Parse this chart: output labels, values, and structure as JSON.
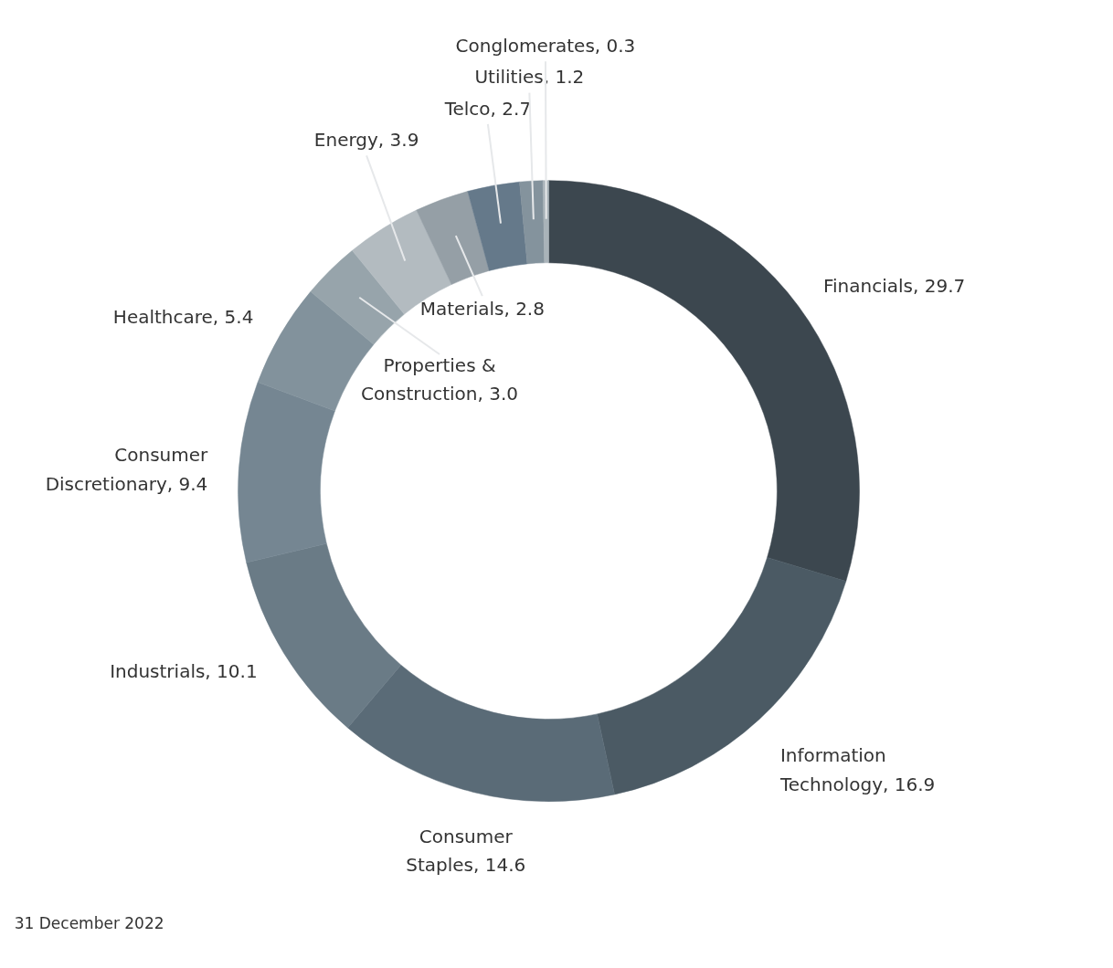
{
  "chart_data": {
    "type": "donut",
    "categories": [
      "Financials",
      "Information Technology",
      "Consumer Staples",
      "Industrials",
      "Consumer Discretionary",
      "Healthcare",
      "Properties & Construction",
      "Energy",
      "Materials",
      "Telco",
      "Utilities",
      "Conglomerates"
    ],
    "values": [
      29.7,
      16.9,
      14.6,
      10.1,
      9.4,
      5.4,
      3.0,
      3.9,
      2.8,
      2.7,
      1.2,
      0.3
    ],
    "value_labels": [
      "29.7",
      "16.9",
      "14.6",
      "10.1",
      "9.4",
      "5.4",
      "3.0",
      "3.9",
      "2.8",
      "2.7",
      "1.2",
      "0.3"
    ],
    "colors": [
      "#3c474f",
      "#4b5a64",
      "#5a6b77",
      "#6a7b86",
      "#758692",
      "#82929c",
      "#97a4ab",
      "#b3bbc0",
      "#959fa6",
      "#65798a",
      "#84939d",
      "#a9b3b9"
    ],
    "annotations": [
      "31 December 2022"
    ]
  }
}
